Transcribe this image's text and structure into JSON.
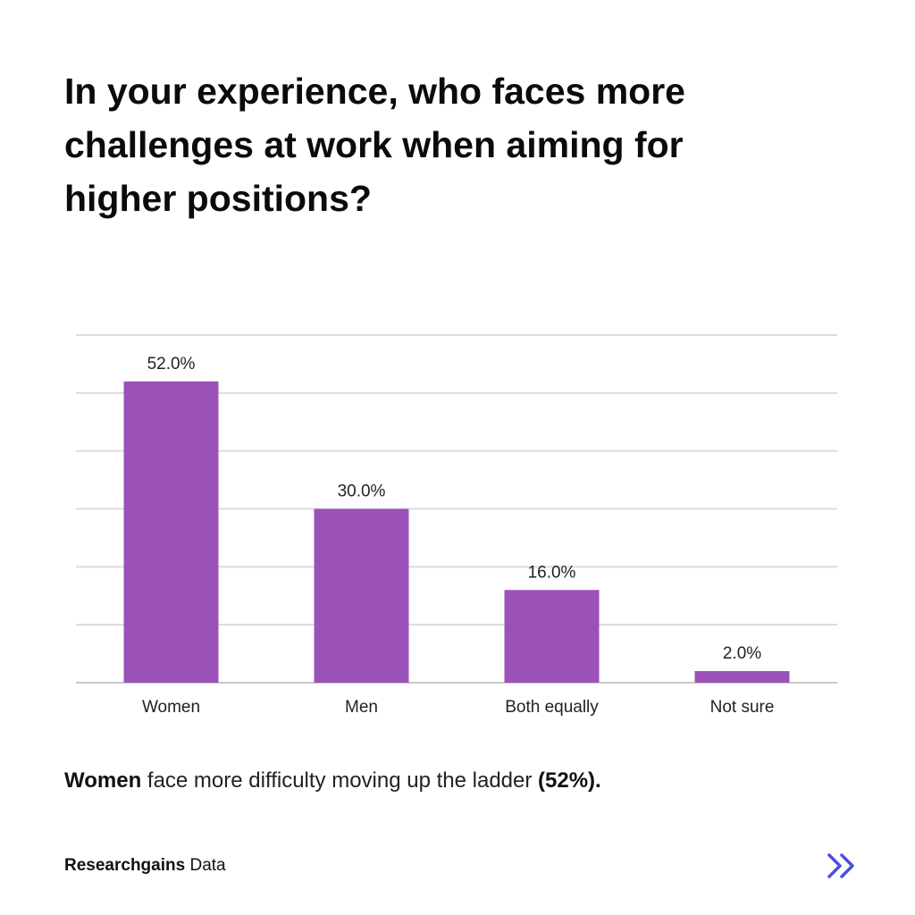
{
  "title": "In your experience, who faces more challenges at work when aiming for higher positions?",
  "summary": {
    "bold_lead": "Women",
    "text": " face more difficulty moving up the ladder ",
    "bold_tail": "(52%)."
  },
  "footer": {
    "brand": "Researchgains",
    "suffix": " Data"
  },
  "icons": {
    "next": "double-chevron-right-icon"
  },
  "colors": {
    "bar": "#9b52b8",
    "grid": "#dcdcdc",
    "accent": "#4a4fe0"
  },
  "chart_data": {
    "type": "bar",
    "title": "In your experience, who faces more challenges at work when aiming for higher positions?",
    "categories": [
      "Women",
      "Men",
      "Both equally",
      "Not sure"
    ],
    "values": [
      52.0,
      30.0,
      16.0,
      2.0
    ],
    "data_labels": [
      "52.0%",
      "30.0%",
      "16.0%",
      "2.0%"
    ],
    "xlabel": "",
    "ylabel": "",
    "ylim": [
      0,
      60
    ],
    "grid_step": 10,
    "grid": true,
    "legend": "none"
  }
}
